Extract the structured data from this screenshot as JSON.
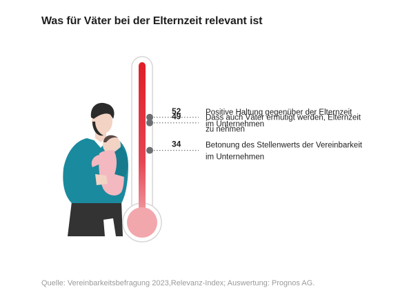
{
  "title": "Was für Väter bei der Elternzeit relevant ist",
  "source": "Quelle: Vereinbarkeitsbefragung 2023,Relevanz-Index; Auswertung: Prognos AG.",
  "colors": {
    "thermometer_fill": "#e01e26",
    "bulb_fill": "#f2a7ad",
    "marker": "#6d6e71",
    "sweater": "#1a8a9e",
    "baby_outfit": "#f4b8c0",
    "trousers": "#333333"
  },
  "chart_data": {
    "type": "bar",
    "orientation": "thermometer",
    "title": "Was für Väter bei der Elternzeit relevant ist",
    "categories": [
      "Positive Haltung gegenüber der Elternzeit im Unternehmen",
      "Dass auch Väter ermutigt werden, Elternzeit zu nehmen",
      "Betonung des Stellenwerts der Vereinbarkeit im Unternehmen"
    ],
    "label_lines": [
      [
        "Positive Haltung gegenüber der Elternzeit",
        "im Unternehmen"
      ],
      [
        "Dass auch Väter ermutigt werden, Elternzeit",
        "zu nehmen"
      ],
      [
        "Betonung des Stellenwerts der Vereinbarkeit",
        "im Unternehmen"
      ]
    ],
    "values": [
      52,
      49,
      34
    ],
    "value_labels": [
      "52",
      "49",
      "34"
    ],
    "ylim": [
      0,
      82
    ],
    "grid": false,
    "legend": "none"
  }
}
